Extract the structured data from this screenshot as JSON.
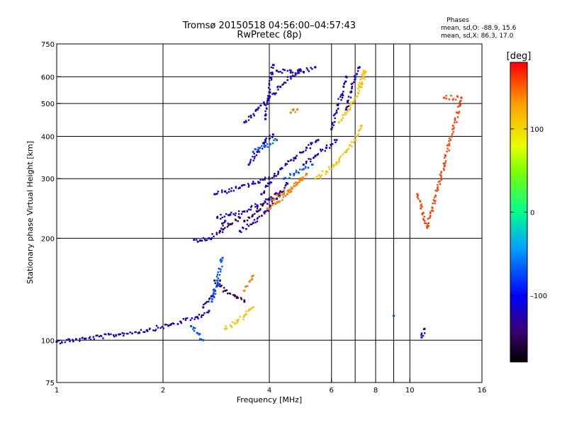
{
  "chart_data": {
    "type": "scatter",
    "title_line1": "Tromsø 20150518 04:56:00–04:57:43",
    "title_line2": "RwPretec (8p)",
    "xlabel": "Frequency [MHz]",
    "ylabel": "Stationary phase Virtual Height [km]",
    "x_scale": "log2",
    "y_scale": "log",
    "xlim": [
      1,
      16
    ],
    "ylim": [
      75,
      750
    ],
    "x_ticks": [
      1,
      2,
      4,
      6,
      8,
      10,
      16
    ],
    "x_tick_labels": [
      "1",
      "2",
      "4",
      "6",
      "8",
      "10",
      "16"
    ],
    "x_grid": [
      2,
      4,
      6,
      7,
      8,
      9,
      10
    ],
    "y_ticks": [
      75,
      100,
      200,
      300,
      400,
      500,
      600,
      750
    ],
    "y_tick_labels": [
      "75",
      "100",
      "200",
      "300",
      "400",
      "500",
      "600",
      "750"
    ],
    "y_grid": [
      100,
      200,
      300,
      400,
      500,
      600
    ],
    "grid": true,
    "stats": {
      "title": "Phases",
      "line_o": "mean, sd,O: -88.9, 15.6",
      "line_x": "mean, sd,X: 86.3, 17.0"
    },
    "colorbar": {
      "label": "[deg]",
      "range": [
        -180,
        180
      ],
      "ticks": [
        100,
        0,
        -100
      ],
      "tick_labels": [
        "100",
        "0",
        "–100"
      ],
      "colormap": [
        "#000000",
        "#3a006e",
        "#0000ff",
        "#00c8ff",
        "#00ff60",
        "#e0ff00",
        "#ffa000",
        "#ff0000"
      ]
    },
    "series": [
      {
        "phase": -100,
        "segments": [
          {
            "x": [
              1.0,
              1.2,
              1.5,
              1.8,
              2.1,
              2.5,
              2.7
            ],
            "y": [
              99,
              101,
              104,
              107,
              111,
              117,
              122
            ]
          },
          {
            "x": [
              2.6,
              2.75,
              2.9
            ],
            "y": [
              125,
              135,
              150
            ]
          },
          {
            "x": [
              2.45,
              2.55,
              2.7,
              2.9,
              3.0
            ],
            "y": [
              198,
              197,
              200,
              210,
              225
            ]
          },
          {
            "x": [
              2.85,
              3.1,
              3.4,
              3.7,
              4.0
            ],
            "y": [
              230,
              235,
              240,
              250,
              262
            ]
          },
          {
            "x": [
              2.8,
              3.0,
              3.3,
              3.6,
              4.0
            ],
            "y": [
              270,
              275,
              282,
              290,
              300
            ]
          },
          {
            "x": [
              3.3,
              3.6,
              3.9,
              4.2,
              4.5
            ],
            "y": [
              210,
              222,
              240,
              262,
              290
            ]
          },
          {
            "x": [
              3.8,
              4.0,
              4.3,
              4.7,
              5.1,
              5.5
            ],
            "y": [
              270,
              290,
              320,
              345,
              370,
              390
            ]
          },
          {
            "x": [
              3.5,
              3.7,
              3.9,
              4.1
            ],
            "y": [
              330,
              360,
              390,
              405
            ]
          },
          {
            "x": [
              3.4,
              3.7,
              4.0,
              4.3,
              4.6,
              4.9
            ],
            "y": [
              440,
              480,
              520,
              560,
              600,
              630
            ]
          },
          {
            "x": [
              3.9,
              4.0,
              4.1
            ],
            "y": [
              450,
              540,
              650
            ]
          },
          {
            "x": [
              4.2,
              4.6,
              5.0,
              5.4
            ],
            "y": [
              625,
              618,
              620,
              640
            ]
          },
          {
            "x": [
              5.0,
              5.4,
              5.8,
              6.2
            ],
            "y": [
              330,
              350,
              370,
              390
            ]
          },
          {
            "x": [
              6.0,
              6.2,
              6.4,
              6.6
            ],
            "y": [
              420,
              470,
              530,
              600
            ]
          },
          {
            "x": [
              6.6,
              6.8,
              7.0,
              7.2
            ],
            "y": [
              480,
              540,
              600,
              640
            ]
          },
          {
            "x": [
              10.8,
              11.0
            ],
            "y": [
              102,
              108
            ]
          }
        ]
      },
      {
        "phase": -140,
        "segments": [
          {
            "x": [
              2.8,
              3.0,
              3.2,
              3.4
            ],
            "y": [
              150,
              140,
              135,
              130
            ]
          },
          {
            "x": [
              3.4,
              3.7,
              4.0,
              4.3
            ],
            "y": [
              225,
              240,
              260,
              275
            ]
          },
          {
            "x": [
              2.9,
              3.1,
              3.3
            ],
            "y": [
              210,
              220,
              230
            ]
          }
        ]
      },
      {
        "phase": -55,
        "segments": [
          {
            "x": [
              2.75,
              2.85,
              2.95
            ],
            "y": [
              130,
              150,
              175
            ]
          },
          {
            "x": [
              4.4,
              4.7,
              5.0,
              5.3
            ],
            "y": [
              300,
              310,
              320,
              330
            ]
          },
          {
            "x": [
              3.6,
              3.9,
              4.2
            ],
            "y": [
              360,
              375,
              390
            ]
          },
          {
            "x": [
              2.4,
              2.5,
              2.6
            ],
            "y": [
              110,
              105,
              100
            ]
          },
          {
            "x": [
              9.0
            ],
            "y": [
              118
            ]
          }
        ]
      },
      {
        "phase": 110,
        "segments": [
          {
            "x": [
              3.0,
              3.2,
              3.4,
              3.6
            ],
            "y": [
              108,
              112,
              118,
              125
            ]
          },
          {
            "x": [
              5.4,
              5.8,
              6.2,
              6.6,
              7.0,
              7.3
            ],
            "y": [
              300,
              315,
              335,
              360,
              390,
              430
            ]
          },
          {
            "x": [
              6.3,
              6.7,
              7.0,
              7.3,
              7.5
            ],
            "y": [
              440,
              480,
              520,
              570,
              620
            ]
          },
          {
            "x": [
              7.2,
              7.4
            ],
            "y": [
              560,
              625
            ]
          }
        ]
      },
      {
        "phase": 140,
        "segments": [
          {
            "x": [
              3.95,
              4.2,
              4.5,
              4.8,
              5.1
            ],
            "y": [
              245,
              255,
              270,
              290,
              310
            ]
          },
          {
            "x": [
              4.1,
              4.4,
              4.7,
              5.0
            ],
            "y": [
              260,
              272,
              285,
              300
            ]
          },
          {
            "x": [
              3.4,
              3.6
            ],
            "y": [
              140,
              155
            ]
          },
          {
            "x": [
              4.6,
              4.8
            ],
            "y": [
              470,
              480
            ]
          }
        ]
      },
      {
        "phase": 160,
        "segments": [
          {
            "x": [
              12.5,
              14.0,
              11.2,
              10.5
            ],
            "y": [
              520,
              520,
              215,
              270
            ]
          }
        ]
      }
    ]
  }
}
